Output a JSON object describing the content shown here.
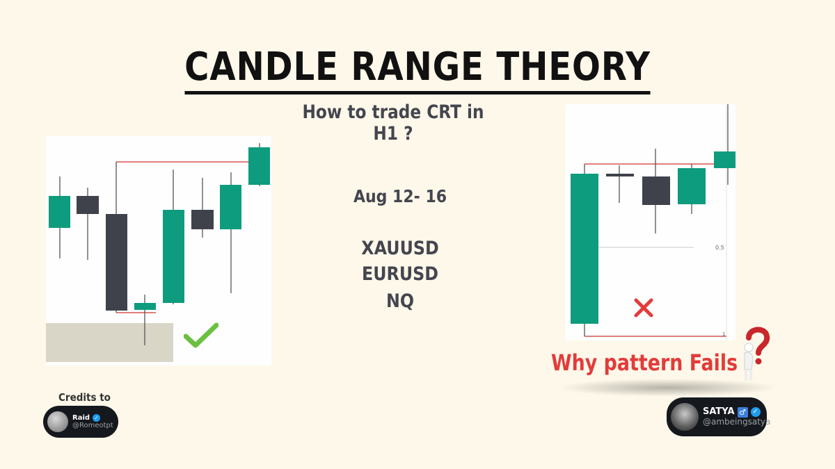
{
  "header": {
    "title": "CANDLE RANGE THEORY",
    "subtitle": "How to trade CRT in H1 ?"
  },
  "center": {
    "date_range": "Aug 12- 16",
    "symbols": [
      "XAUUSD",
      "EURUSD",
      "NQ"
    ]
  },
  "right_chart": {
    "level_mid": "0.5",
    "level_low": "1",
    "caption": "Why pattern Fails"
  },
  "credits": {
    "label": "Credits to",
    "left_profile": {
      "name": "Raid",
      "handle": "@Romeotpt"
    },
    "right_profile": {
      "name": "SATYA",
      "handle": "@ambeingsatya"
    }
  },
  "colors": {
    "background": "#fdf8e9",
    "bullish": "#0e9c7e",
    "bearish": "#40424b",
    "range_line": "#d9534f",
    "fail_text": "#e33b3b",
    "check": "#6cc041"
  },
  "icons": [
    "checkmark-icon",
    "cross-icon",
    "question-man-icon",
    "verified-icon",
    "male-sign-icon"
  ]
}
